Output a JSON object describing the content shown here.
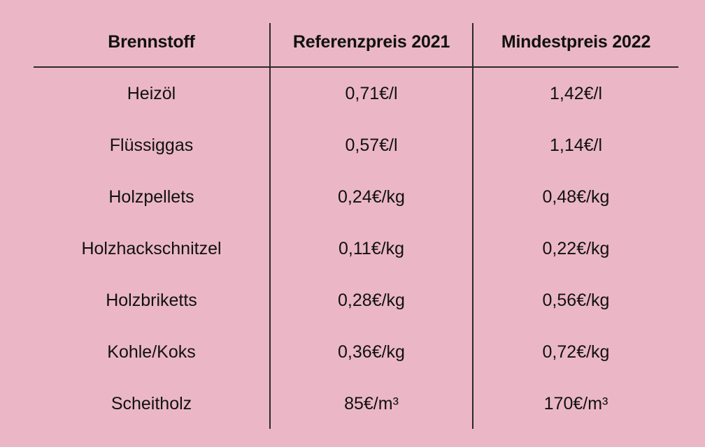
{
  "table": {
    "headers": [
      "Brennstoff",
      "Referenzpreis 2021",
      "Mindestpreis 2022"
    ],
    "rows": [
      {
        "fuel": "Heizöl",
        "ref": "0,71€/l",
        "min": "1,42€/l"
      },
      {
        "fuel": "Flüssiggas",
        "ref": "0,57€/l",
        "min": "1,14€/l"
      },
      {
        "fuel": "Holzpellets",
        "ref": "0,24€/kg",
        "min": "0,48€/kg"
      },
      {
        "fuel": "Holzhackschnitzel",
        "ref": "0,11€/kg",
        "min": "0,22€/kg"
      },
      {
        "fuel": "Holzbriketts",
        "ref": "0,28€/kg",
        "min": "0,56€/kg"
      },
      {
        "fuel": "Kohle/Koks",
        "ref": "0,36€/kg",
        "min": "0,72€/kg"
      },
      {
        "fuel": "Scheitholz",
        "ref": "85€/m³",
        "min": "170€/m³"
      }
    ]
  }
}
